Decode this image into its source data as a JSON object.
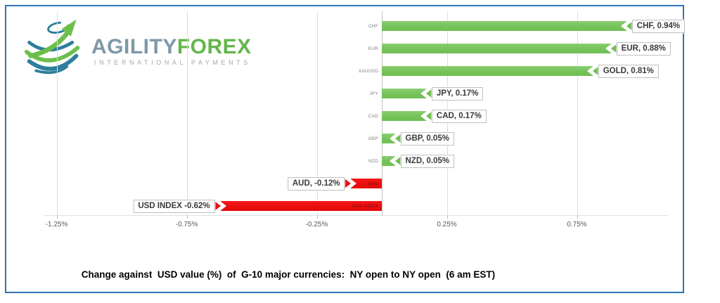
{
  "logo": {
    "brand_primary": "AGILITY",
    "brand_secondary": "FOREX",
    "tagline": "INTERNATIONAL PAYMENTS"
  },
  "caption": "Change against  USD value (%)  of  G-10 major currencies:  NY open to NY open  (6 am EST)",
  "colors": {
    "positive_bar": "#6fbe52",
    "negative_bar": "#ec0f0f",
    "frame_border": "#2e75b6",
    "gridline": "#dcdcdc",
    "zero_axis": "#c2c2c2",
    "tick_text": "#595959",
    "callout_border": "#bfbfbf",
    "callout_text": "#3a3a3a",
    "category_text": "#7f7f7f",
    "category_text_negative": "#7a1010",
    "logo_blue": "#7e98a8",
    "logo_green": "#64b54b",
    "logo_gray": "#9fa8ae"
  },
  "chart_data": {
    "type": "bar",
    "orientation": "horizontal",
    "title": "Change against  USD value (%)  of  G-10 major currencies:  NY open to NY open  (6 am EST)",
    "categories": [
      "CHF",
      "EUR",
      "XAUUSD",
      "JPY",
      "CAD",
      "GBP",
      "NZD",
      "AUD",
      "USD INDEX"
    ],
    "values": [
      0.94,
      0.88,
      0.81,
      0.17,
      0.17,
      0.05,
      0.05,
      -0.12,
      -0.62
    ],
    "data_labels": [
      "CHF, 0.94%",
      "EUR, 0.88%",
      "GOLD, 0.81%",
      "JPY, 0.17%",
      "CAD, 0.17%",
      "GBP, 0.05%",
      "NZD, 0.05%",
      "AUD, -0.12%",
      "USD INDEX -0.62%"
    ],
    "x_ticks": [
      "-1.25%",
      "-0.75%",
      "-0.25%",
      "0.25%",
      "0.75%"
    ],
    "x_tick_values": [
      -1.25,
      -0.75,
      -0.25,
      0.25,
      0.75
    ],
    "xlim": [
      -1.3,
      1.15
    ],
    "unit": "%",
    "grid": true,
    "legend": false
  }
}
